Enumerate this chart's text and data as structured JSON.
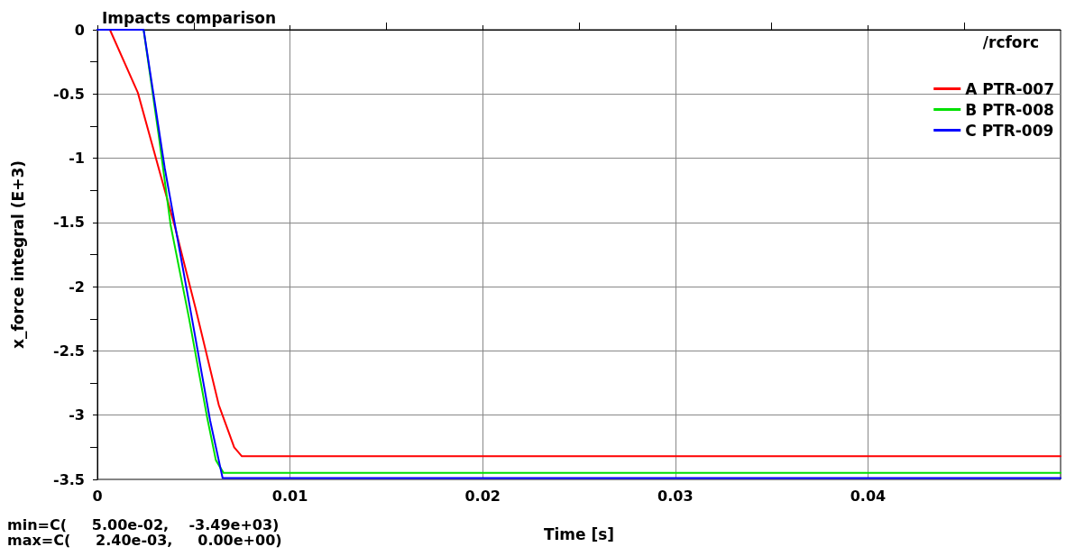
{
  "chart_data": {
    "type": "line",
    "title": "Impacts comparison",
    "xlabel": "Time [s]",
    "ylabel": "x_force integral (E+3)",
    "legend_title": "/rcforc",
    "annotations": [
      "min=C(     5.00e-02,    -3.49e+03)",
      "max=C(     2.40e-03,     0.00e+00)"
    ],
    "xlim": [
      0,
      0.05
    ],
    "xticks": [
      0,
      0.01,
      0.02,
      0.03,
      0.04
    ],
    "ylim": [
      -3.5,
      0
    ],
    "yticks": [
      0,
      -0.5,
      -1,
      -1.5,
      -2,
      -2.5,
      -3,
      -3.5
    ],
    "grid": true,
    "legend": "top right",
    "marker": "none",
    "line_style": "solid",
    "series": [
      {
        "name": "A PTR-007",
        "color": "#ff0000",
        "x": [
          0,
          0.00065,
          0.0021,
          0.00335,
          0.004,
          0.0051,
          0.0063,
          0.0071,
          0.0075,
          0.05
        ],
        "values": [
          0,
          0,
          -0.49,
          -1.17,
          -1.52,
          -2.17,
          -2.92,
          -3.25,
          -3.32,
          -3.32
        ]
      },
      {
        "name": "B PTR-008",
        "color": "#00e000",
        "x": [
          0,
          0.0024,
          0.0032,
          0.0038,
          0.00475,
          0.0057,
          0.00615,
          0.00655,
          0.05
        ],
        "values": [
          0,
          0,
          -0.84,
          -1.52,
          -2.24,
          -3.02,
          -3.35,
          -3.45,
          -3.45
        ]
      },
      {
        "name": "C PTR-009",
        "color": "#0000ff",
        "x": [
          0,
          0.0024,
          0.0035,
          0.0049,
          0.00585,
          0.0065,
          0.05
        ],
        "values": [
          0,
          0,
          -1.08,
          -2.24,
          -3.04,
          -3.49,
          -3.49
        ]
      }
    ]
  }
}
